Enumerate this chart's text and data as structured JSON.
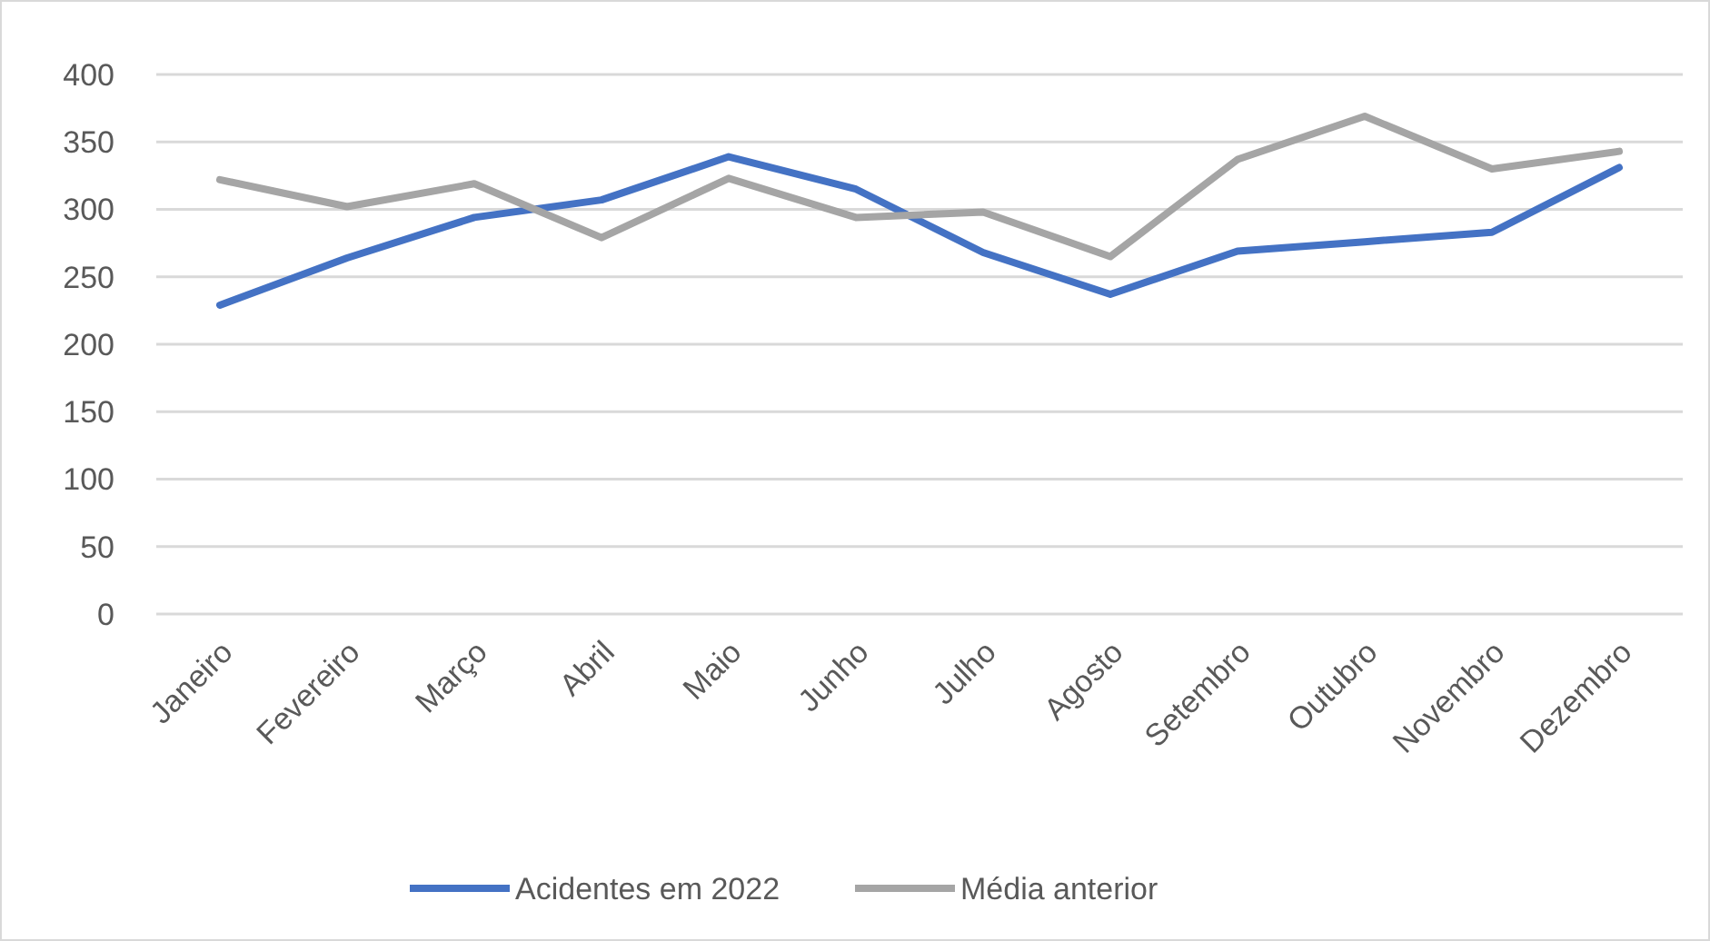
{
  "chart_data": {
    "type": "line",
    "categories": [
      "Janeiro",
      "Fevereiro",
      "Março",
      "Abril",
      "Maio",
      "Junho",
      "Julho",
      "Agosto",
      "Setembro",
      "Outubro",
      "Novembro",
      "Dezembro"
    ],
    "series": [
      {
        "name": "Acidentes em 2022",
        "color": "#4472c4",
        "values": [
          229,
          264,
          294,
          307,
          339,
          315,
          268,
          237,
          269,
          276,
          283,
          331
        ]
      },
      {
        "name": "Média anterior",
        "color": "#a5a5a5",
        "values": [
          322,
          302,
          319,
          279,
          323,
          294,
          298,
          265,
          337,
          369,
          330,
          343
        ]
      }
    ],
    "ylim": [
      0,
      400
    ],
    "yticks": [
      0,
      50,
      100,
      150,
      200,
      250,
      300,
      350,
      400
    ],
    "grid": "y",
    "legend": "bottom",
    "marker": "none",
    "line_style": "solid"
  }
}
